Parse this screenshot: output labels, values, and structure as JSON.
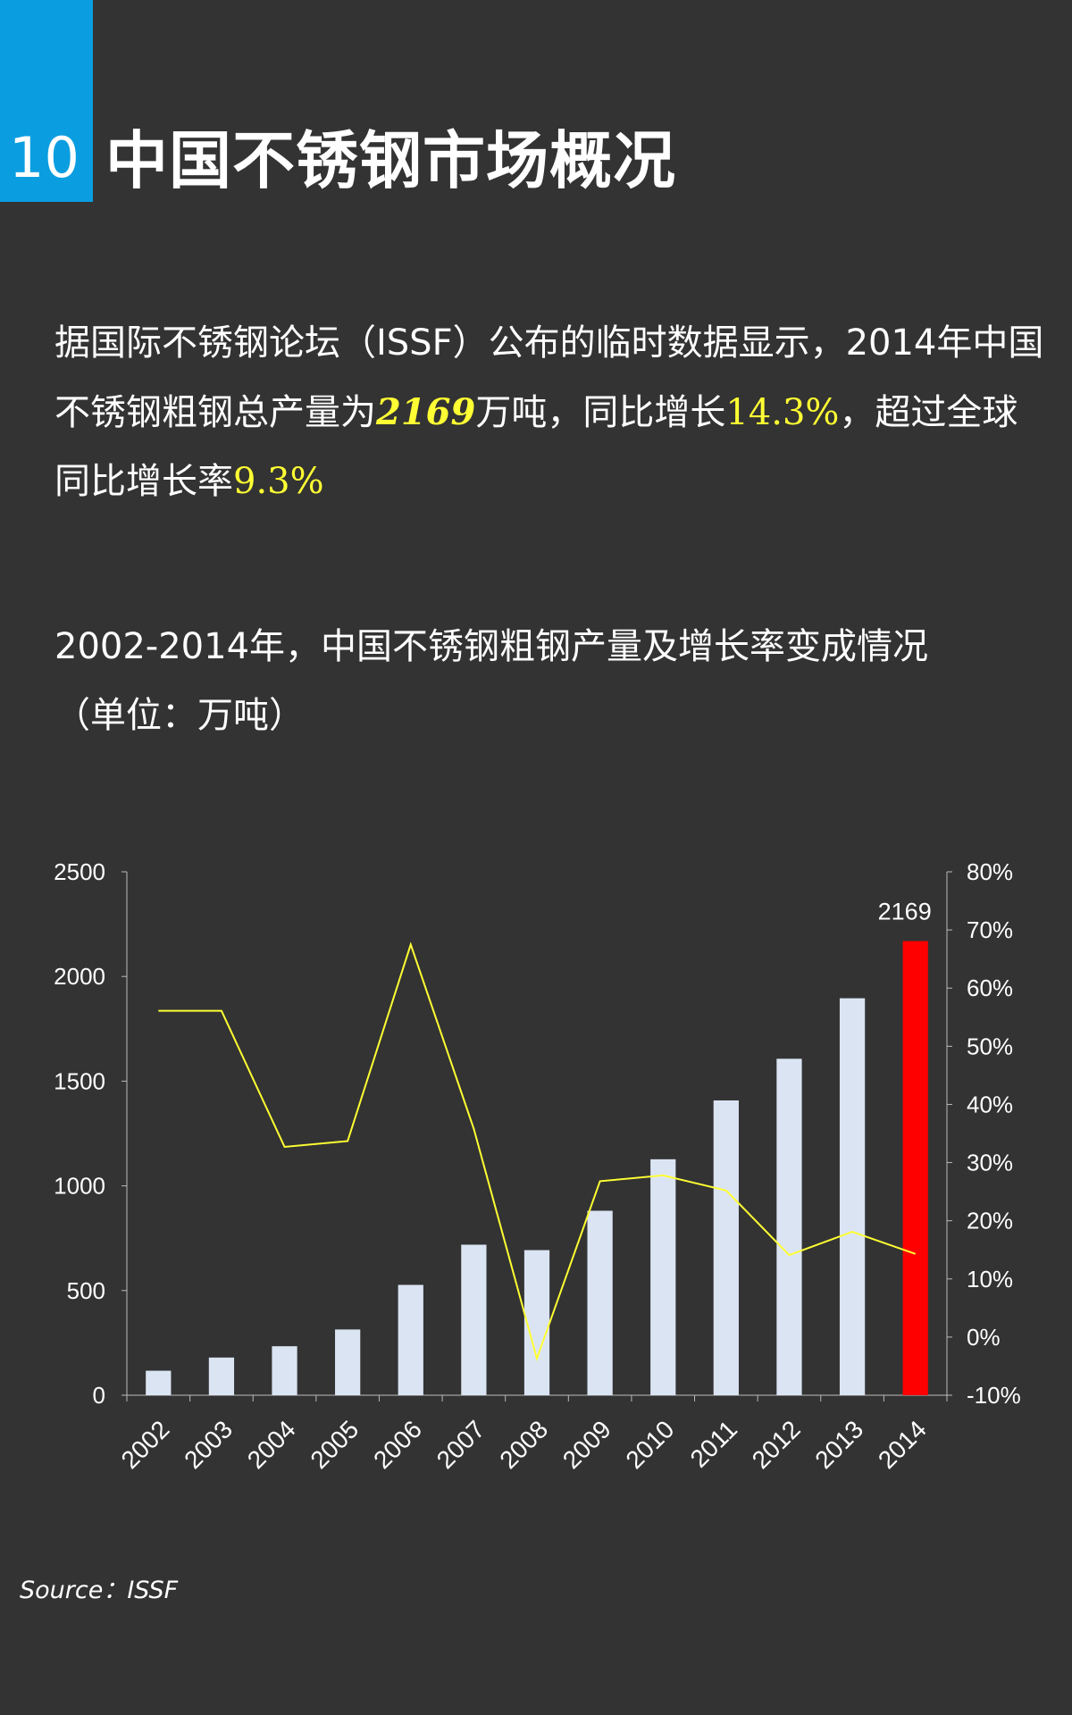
{
  "header": {
    "section_number": "10",
    "title": "中国不锈钢市场概况"
  },
  "paragraph": {
    "part1": "据国际不锈钢论坛（ISSF）公布的临时数据显示，2014年中国不锈钢粗钢总产量为",
    "highlight_production": "2169",
    "part2": "万吨，同比增长",
    "highlight_growth": "14.3%",
    "part3": "，超过全球同比增长率",
    "highlight_global": "9.3%"
  },
  "chart_heading": {
    "line1": "2002-2014年，中国不锈钢粗钢产量及增长率变成情况",
    "line2": "（单位：万吨）"
  },
  "source": "Source：ISSF",
  "colors": {
    "background": "#333333",
    "accent": "#0a9ee0",
    "bar": "#dbe4f3",
    "highlight_bar": "#ff0000",
    "line": "#ffff33"
  },
  "chart_data": {
    "type": "bar+line",
    "categories": [
      "2002",
      "2003",
      "2004",
      "2005",
      "2006",
      "2007",
      "2008",
      "2009",
      "2010",
      "2011",
      "2012",
      "2013",
      "2014"
    ],
    "series": [
      {
        "name": "产量（万吨）",
        "type": "bar",
        "axis": "left",
        "values": [
          117,
          180,
          234,
          314,
          527,
          719,
          693,
          881,
          1127,
          1408,
          1607,
          1896,
          2169
        ]
      },
      {
        "name": "增长率",
        "type": "line",
        "axis": "right",
        "values": [
          56.1,
          56.1,
          32.7,
          33.7,
          67.5,
          35.8,
          -3.7,
          26.8,
          27.8,
          25.2,
          14.1,
          18.1,
          14.3
        ]
      }
    ],
    "data_labels": [
      {
        "category": "2014",
        "text": "2169"
      }
    ],
    "left_axis": {
      "ylim": [
        0,
        2500
      ],
      "ticks": [
        "0",
        "500",
        "1000",
        "1500",
        "2000",
        "2500"
      ]
    },
    "right_axis": {
      "ylim": [
        -10,
        80
      ],
      "ticks": [
        "-10%",
        "0%",
        "10%",
        "20%",
        "30%",
        "40%",
        "50%",
        "60%",
        "70%",
        "80%"
      ]
    },
    "grid": false,
    "legend": "none"
  }
}
